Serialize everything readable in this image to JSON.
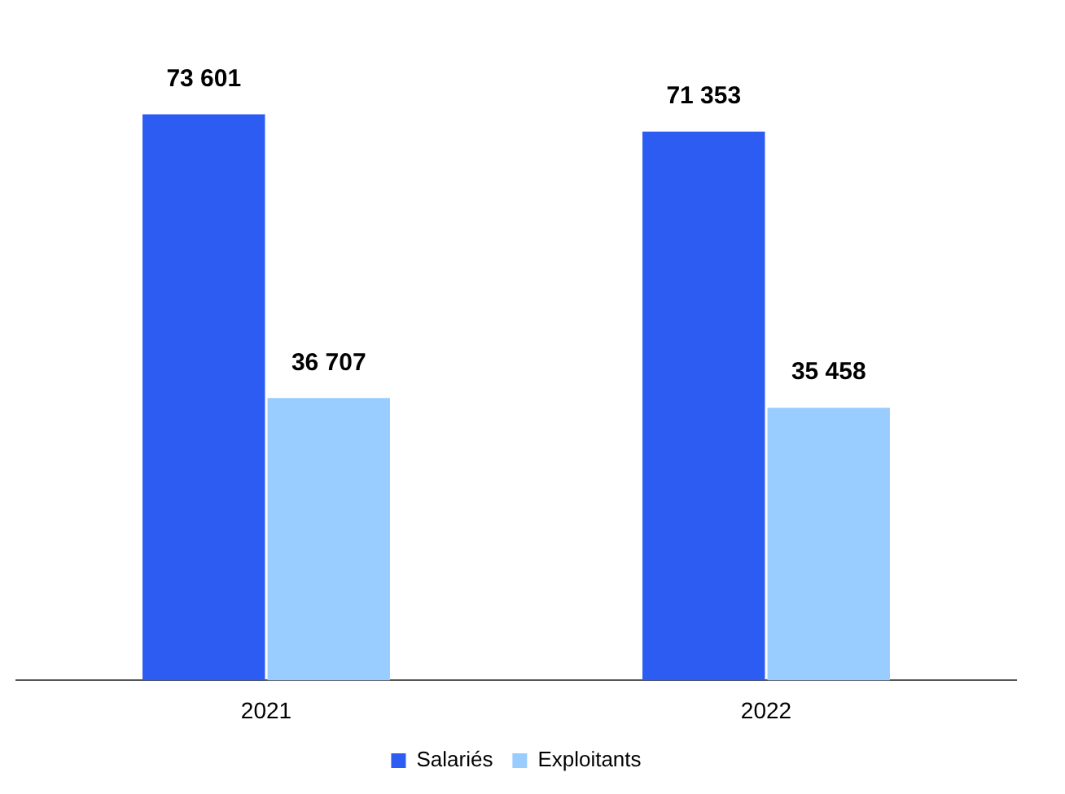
{
  "chart_data": {
    "type": "bar",
    "categories": [
      "2021",
      "2022"
    ],
    "series": [
      {
        "name": "Salariés",
        "color": "#2d5cf2",
        "values": [
          73601,
          71353
        ],
        "value_labels": [
          "73 601",
          "71 353"
        ]
      },
      {
        "name": "Exploitants",
        "color": "#99ccff",
        "values": [
          36707,
          35458
        ],
        "value_labels": [
          "36 707",
          "35 458"
        ]
      }
    ],
    "tick_labels": "x",
    "legend": "bottom",
    "grid": false
  }
}
